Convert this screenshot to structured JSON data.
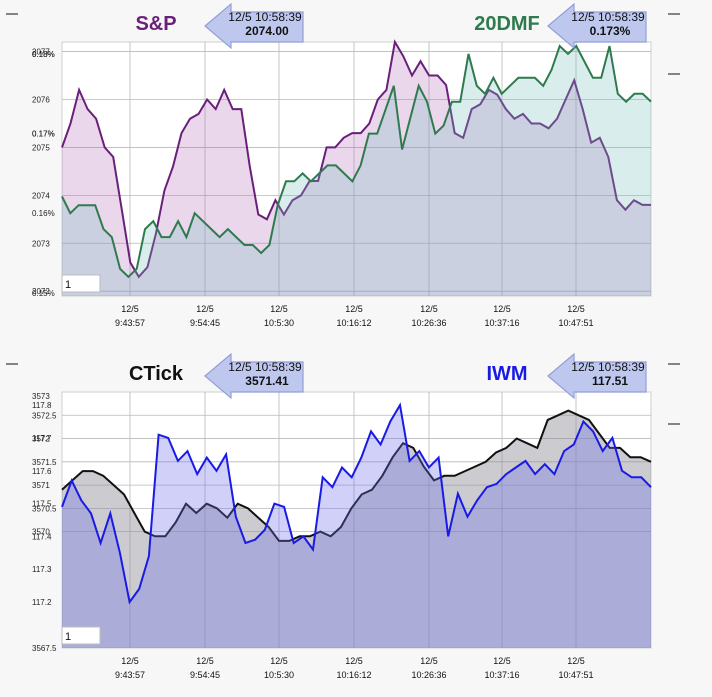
{
  "colors": {
    "sp": "#6a1f7a",
    "dmf": "#2f7a4e",
    "ctick": "#111111",
    "iwm": "#1a1ae6",
    "grid": "#b8b8b8",
    "plotbg": "#ffffff"
  },
  "chart_data": [
    {
      "type": "area",
      "panel": "top",
      "x_labels": [
        {
          "date": "12/5",
          "time": "9:43:57"
        },
        {
          "date": "12/5",
          "time": "9:54:45"
        },
        {
          "date": "12/5",
          "time": "10:5:30"
        },
        {
          "date": "12/5",
          "time": "10:16:12"
        },
        {
          "date": "12/5",
          "time": "10:26:36"
        },
        {
          "date": "12/5",
          "time": "10:37:16"
        },
        {
          "date": "12/5",
          "time": "10:47:51"
        }
      ],
      "input_value": "1",
      "series": [
        {
          "name": "S&P",
          "label": "S&P",
          "badge_time": "12/5 10:58:39",
          "badge_value": "2074.00",
          "color": "sp",
          "ylim": [
            2071.9,
            2077.2
          ],
          "yticks": [
            "2077",
            "2076",
            "2075",
            "2074",
            "2073",
            "2072"
          ],
          "values": [
            2075.0,
            2075.5,
            2076.2,
            2075.8,
            2075.6,
            2075.0,
            2074.8,
            2073.7,
            2072.6,
            2072.3,
            2072.5,
            2073.2,
            2074.1,
            2074.6,
            2075.3,
            2075.6,
            2075.7,
            2076.0,
            2075.8,
            2076.2,
            2075.8,
            2075.8,
            2074.6,
            2073.6,
            2073.5,
            2073.9,
            2073.6,
            2073.9,
            2074.0,
            2074.3,
            2074.3,
            2075.0,
            2075.0,
            2075.2,
            2075.3,
            2075.3,
            2075.5,
            2076.0,
            2076.2,
            2077.2,
            2076.9,
            2076.5,
            2076.8,
            2076.5,
            2076.5,
            2076.3,
            2075.3,
            2075.2,
            2075.8,
            2075.9,
            2076.2,
            2076.1,
            2075.8,
            2075.6,
            2075.7,
            2075.5,
            2075.5,
            2075.4,
            2075.6,
            2076.0,
            2076.4,
            2075.8,
            2075.1,
            2075.2,
            2074.8,
            2073.9,
            2073.7,
            2073.9,
            2073.8,
            2073.8
          ],
          "fill": "rgba(170,95,180,0.25)"
        },
        {
          "name": "20DMF",
          "label": "20DMF",
          "badge_time": "12/5 10:58:39",
          "badge_value": "0.173%",
          "color": "dmf",
          "ylim": [
            0.1496,
            0.1815
          ],
          "yticks": [
            "0.18%",
            "0.18%",
            "0.17%",
            "0.17%",
            "0.16%",
            "0.15%"
          ],
          "values": [
            0.1621,
            0.16,
            0.161,
            0.161,
            0.161,
            0.158,
            0.157,
            0.153,
            0.152,
            0.153,
            0.158,
            0.159,
            0.157,
            0.157,
            0.159,
            0.157,
            0.16,
            0.159,
            0.158,
            0.157,
            0.158,
            0.157,
            0.156,
            0.156,
            0.155,
            0.156,
            0.161,
            0.164,
            0.164,
            0.165,
            0.164,
            0.165,
            0.166,
            0.166,
            0.165,
            0.164,
            0.166,
            0.17,
            0.17,
            0.173,
            0.176,
            0.168,
            0.172,
            0.176,
            0.174,
            0.17,
            0.171,
            0.174,
            0.174,
            0.18,
            0.176,
            0.175,
            0.177,
            0.175,
            0.176,
            0.177,
            0.177,
            0.177,
            0.176,
            0.178,
            0.181,
            0.18,
            0.181,
            0.179,
            0.177,
            0.177,
            0.181,
            0.175,
            0.174,
            0.175,
            0.175,
            0.174
          ],
          "fill": "rgba(120,190,190,0.28)"
        }
      ]
    },
    {
      "type": "area",
      "panel": "bottom",
      "x_labels": [
        {
          "date": "12/5",
          "time": "9:43:57"
        },
        {
          "date": "12/5",
          "time": "9:54:45"
        },
        {
          "date": "12/5",
          "time": "10:5:30"
        },
        {
          "date": "12/5",
          "time": "10:16:12"
        },
        {
          "date": "12/5",
          "time": "10:26:36"
        },
        {
          "date": "12/5",
          "time": "10:37:16"
        },
        {
          "date": "12/5",
          "time": "10:47:51"
        }
      ],
      "input_value": "1",
      "series": [
        {
          "name": "CTick",
          "label": "CTick",
          "badge_time": "12/5 10:58:39",
          "badge_value": "3571.41",
          "color": "ctick",
          "ylim": [
            3567.5,
            3573
          ],
          "yticks": [
            "3573",
            "3572.5",
            "3572",
            "3571.5",
            "3571",
            "3570.5",
            "3570",
            "3567.5"
          ],
          "values": [
            3570.9,
            3571.1,
            3571.3,
            3571.3,
            3571.2,
            3571.0,
            3570.8,
            3570.4,
            3570.0,
            3569.9,
            3569.9,
            3570.2,
            3570.6,
            3570.4,
            3570.6,
            3570.5,
            3570.3,
            3570.6,
            3570.5,
            3570.3,
            3570.1,
            3569.8,
            3569.8,
            3569.9,
            3569.9,
            3570.0,
            3569.9,
            3570.1,
            3570.5,
            3570.8,
            3570.9,
            3571.2,
            3571.6,
            3571.9,
            3571.8,
            3571.4,
            3571.1,
            3571.2,
            3571.2,
            3571.3,
            3571.4,
            3571.5,
            3571.7,
            3571.8,
            3572.0,
            3571.9,
            3571.8,
            3572.4,
            3572.5,
            3572.6,
            3572.5,
            3572.4,
            3572.1,
            3571.8,
            3571.8,
            3571.6,
            3571.6,
            3571.5
          ],
          "fill": "rgba(140,140,150,0.45)"
        },
        {
          "name": "IWM",
          "label": "IWM",
          "badge_time": "12/5 10:58:39",
          "badge_value": "117.51",
          "color": "iwm",
          "ylim": [
            117.06,
            117.84
          ],
          "yticks": [
            "117.8",
            "117.7",
            "117.6",
            "117.5",
            "117.4",
            "117.3",
            "117.2"
          ],
          "values": [
            117.49,
            117.57,
            117.51,
            117.47,
            117.38,
            117.47,
            117.35,
            117.2,
            117.24,
            117.34,
            117.71,
            117.7,
            117.63,
            117.66,
            117.59,
            117.64,
            117.6,
            117.65,
            117.46,
            117.38,
            117.39,
            117.42,
            117.5,
            117.49,
            117.38,
            117.4,
            117.36,
            117.58,
            117.55,
            117.61,
            117.58,
            117.64,
            117.72,
            117.68,
            117.75,
            117.8,
            117.63,
            117.66,
            117.61,
            117.64,
            117.4,
            117.53,
            117.46,
            117.51,
            117.55,
            117.56,
            117.59,
            117.61,
            117.63,
            117.59,
            117.62,
            117.59,
            117.66,
            117.68,
            117.75,
            117.72,
            117.66,
            117.7,
            117.6,
            117.58,
            117.58,
            117.55
          ],
          "fill": "rgba(110,110,235,0.32)"
        }
      ]
    }
  ]
}
